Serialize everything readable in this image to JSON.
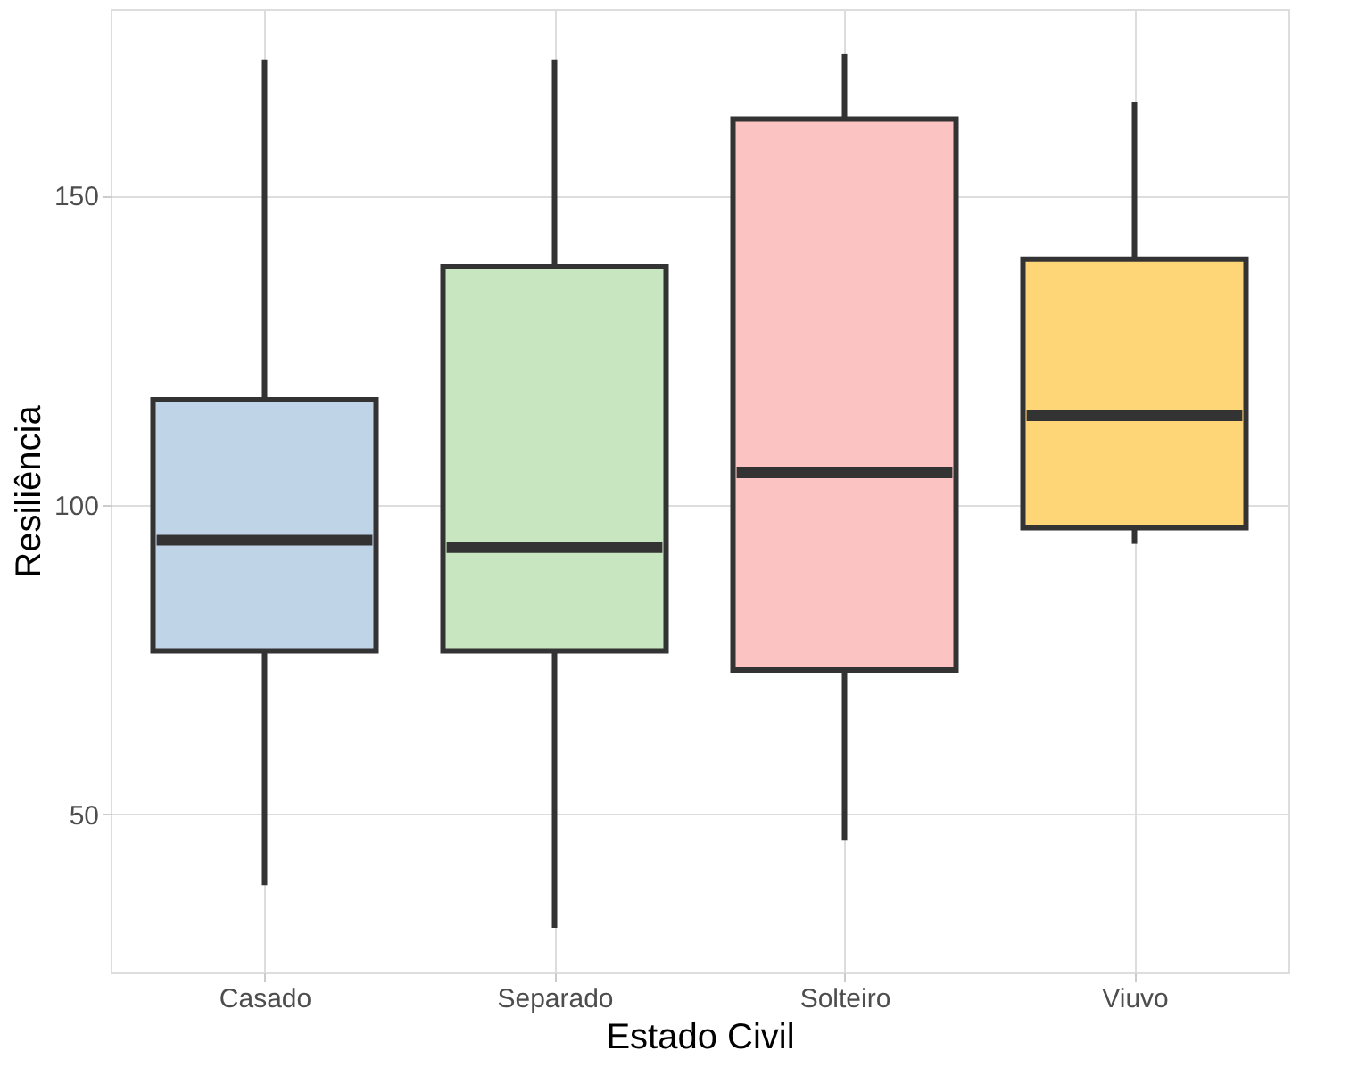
{
  "chart_data": {
    "type": "box",
    "xlabel": "Estado Civil",
    "ylabel": "Resiliência",
    "categories": [
      "Casado",
      "Separado",
      "Solteiro",
      "Viuvo"
    ],
    "colors": [
      "#c0d4e8",
      "#c8e6bf",
      "#fbc4c2",
      "#ffd677"
    ],
    "boxes": [
      {
        "low": 38.5,
        "q1": 76.4,
        "median": 94.3,
        "q3": 117,
        "high": 172
      },
      {
        "low": 31.6,
        "q1": 76.4,
        "median": 93.1,
        "q3": 138.5,
        "high": 172
      },
      {
        "low": 45.7,
        "q1": 73.3,
        "median": 105.2,
        "q3": 162.4,
        "high": 173
      },
      {
        "low": 93.7,
        "q1": 96.3,
        "median": 114.4,
        "q3": 139.7,
        "high": 165.2
      }
    ],
    "ylim": [
      24.4,
      180.2
    ],
    "yticks": [
      50,
      100,
      150
    ],
    "grid": true
  }
}
